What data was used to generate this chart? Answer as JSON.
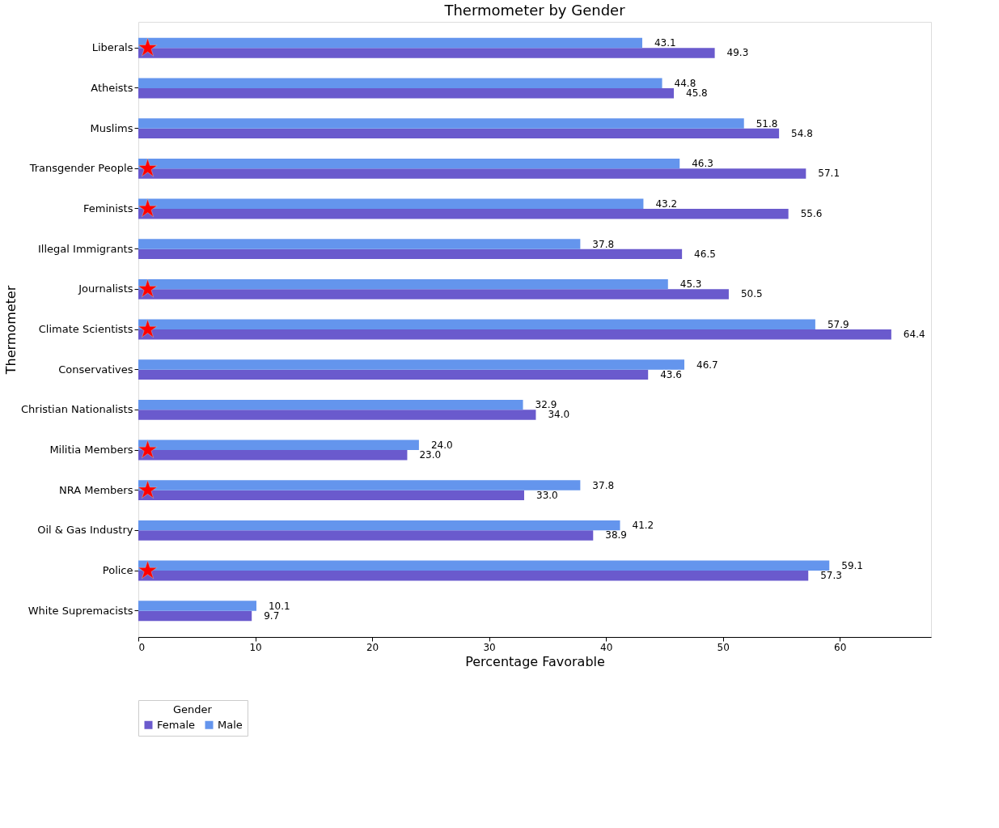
{
  "chart_data": {
    "type": "bar",
    "orientation": "horizontal",
    "title": "Thermometer by Gender",
    "xlabel": "Percentage Favorable",
    "ylabel": "Thermometer",
    "legend_title": "Gender",
    "legend": "bottom",
    "grid": false,
    "categories": [
      "Liberals",
      "Atheists",
      "Muslims",
      "Transgender People",
      "Feminists",
      "Illegal Immigrants",
      "Journalists",
      "Climate Scientists",
      "Conservatives",
      "Christian Nationalists",
      "Militia Members",
      "NRA Members",
      "Oil & Gas Industry",
      "Police",
      "White Supremacists"
    ],
    "series": [
      {
        "name": "Female",
        "color": "#6a5acd",
        "values": [
          49.3,
          45.8,
          54.8,
          57.1,
          55.6,
          46.5,
          50.5,
          64.4,
          43.6,
          34.0,
          23.0,
          33.0,
          38.9,
          57.3,
          9.7
        ],
        "value_labels": [
          "49.3",
          "45.8",
          "54.8",
          "57.1",
          "55.6",
          "46.5",
          "50.5",
          "64.4",
          "43.6",
          "34.0",
          "23.0",
          "33.0",
          "38.9",
          "57.3",
          "9.7"
        ]
      },
      {
        "name": "Male",
        "color": "#6495ed",
        "values": [
          43.1,
          44.8,
          51.8,
          46.3,
          43.2,
          37.8,
          45.3,
          57.9,
          46.7,
          32.9,
          24.0,
          37.8,
          41.2,
          59.1,
          10.1
        ],
        "value_labels": [
          "43.1",
          "44.8",
          "51.8",
          "46.3",
          "43.2",
          "37.8",
          "45.3",
          "57.9",
          "46.7",
          "32.9",
          "24.0",
          "37.8",
          "41.2",
          "59.1",
          "10.1"
        ]
      },
      {
        "type": "scatter",
        "marker": "star",
        "color": "#ff0000",
        "values": [
          0.8,
          null,
          null,
          0.8,
          0.8,
          null,
          0.8,
          0.8,
          null,
          null,
          0.8,
          0.8,
          null,
          0.8,
          null
        ]
      }
    ],
    "xlim": [
      0,
      67.8
    ],
    "xticks": [
      0,
      10,
      20,
      30,
      40,
      50,
      60
    ]
  }
}
